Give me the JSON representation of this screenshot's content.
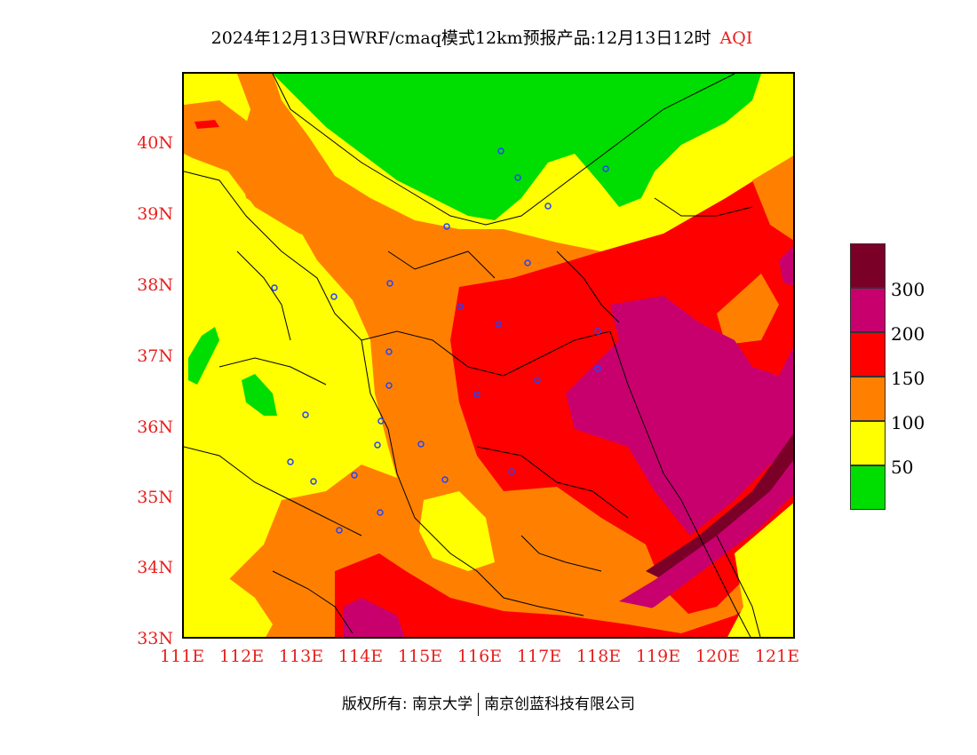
{
  "header": {
    "title": "2024年12月13日WRF/cmaq模式12km预报产品:12月13日12时",
    "variable": "AQI"
  },
  "map": {
    "lat_ticks": [
      "40N",
      "39N",
      "38N",
      "37N",
      "36N",
      "35N",
      "34N",
      "33N"
    ],
    "lon_ticks": [
      "111E",
      "112E",
      "113E",
      "114E",
      "115E",
      "116E",
      "117E",
      "118E",
      "119E",
      "120E",
      "121E"
    ],
    "lat_range": [
      33,
      41
    ],
    "lon_range": [
      111,
      121.4
    ]
  },
  "legend": {
    "colors": [
      "#7a0028",
      "#c8006e",
      "#ff0000",
      "#ff8000",
      "#ffff00",
      "#00dd00"
    ],
    "labels": [
      "300",
      "200",
      "150",
      "100",
      "50"
    ]
  },
  "footer": {
    "copyright": "版权所有: 南京大学",
    "company": "南京创蓝科技有限公司"
  }
}
